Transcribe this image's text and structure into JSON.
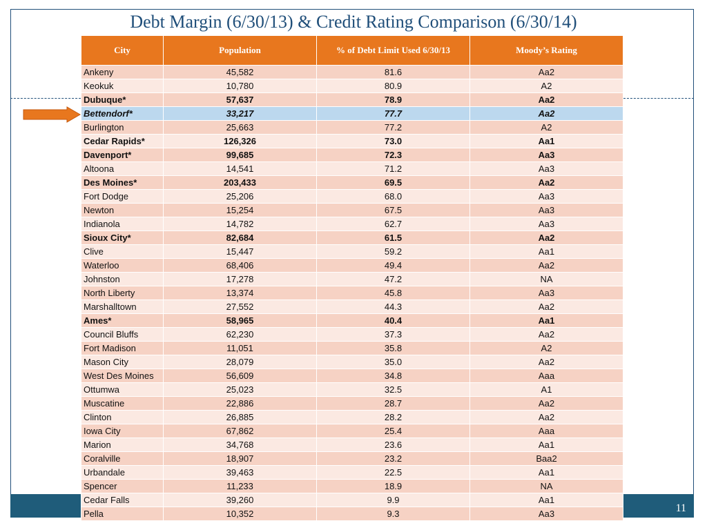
{
  "slide": {
    "title": "Debt Margin (6/30/13) & Credit Rating Comparison (6/30/14)",
    "page_number": "11"
  },
  "table": {
    "headers": [
      "City",
      "Population",
      "% of Debt Limit Used 6/30/13",
      "Moody’s Rating"
    ],
    "rows": [
      {
        "city": "Ankeny",
        "population": "45,582",
        "pct": "81.6",
        "rating": "Aa2",
        "style": "normal"
      },
      {
        "city": "Keokuk",
        "population": "10,780",
        "pct": "80.9",
        "rating": "A2",
        "style": "normal"
      },
      {
        "city": "Dubuque*",
        "population": "57,637",
        "pct": "78.9",
        "rating": "Aa2",
        "style": "bold"
      },
      {
        "city": "Bettendorf*",
        "population": "33,217",
        "pct": "77.7",
        "rating": "Aa2",
        "style": "highlight"
      },
      {
        "city": "Burlington",
        "population": "25,663",
        "pct": "77.2",
        "rating": "A2",
        "style": "normal"
      },
      {
        "city": "Cedar Rapids*",
        "population": "126,326",
        "pct": "73.0",
        "rating": "Aa1",
        "style": "bold"
      },
      {
        "city": "Davenport*",
        "population": "99,685",
        "pct": "72.3",
        "rating": "Aa3",
        "style": "bold"
      },
      {
        "city": "Altoona",
        "population": "14,541",
        "pct": "71.2",
        "rating": "Aa3",
        "style": "normal"
      },
      {
        "city": "Des Moines*",
        "population": "203,433",
        "pct": "69.5",
        "rating": "Aa2",
        "style": "bold"
      },
      {
        "city": "Fort Dodge",
        "population": "25,206",
        "pct": "68.0",
        "rating": "Aa3",
        "style": "normal"
      },
      {
        "city": "Newton",
        "population": "15,254",
        "pct": "67.5",
        "rating": "Aa3",
        "style": "normal"
      },
      {
        "city": "Indianola",
        "population": "14,782",
        "pct": "62.7",
        "rating": "Aa3",
        "style": "normal"
      },
      {
        "city": "Sioux City*",
        "population": "82,684",
        "pct": "61.5",
        "rating": "Aa2",
        "style": "bold"
      },
      {
        "city": "Clive",
        "population": "15,447",
        "pct": "59.2",
        "rating": "Aa1",
        "style": "normal"
      },
      {
        "city": "Waterloo",
        "population": "68,406",
        "pct": "49.4",
        "rating": "Aa2",
        "style": "normal"
      },
      {
        "city": "Johnston",
        "population": "17,278",
        "pct": "47.2",
        "rating": "NA",
        "style": "normal"
      },
      {
        "city": "North Liberty",
        "population": "13,374",
        "pct": "45.8",
        "rating": "Aa3",
        "style": "normal"
      },
      {
        "city": "Marshalltown",
        "population": "27,552",
        "pct": "44.3",
        "rating": "Aa2",
        "style": "normal"
      },
      {
        "city": "Ames*",
        "population": "58,965",
        "pct": "40.4",
        "rating": "Aa1",
        "style": "bold"
      },
      {
        "city": "Council Bluffs",
        "population": "62,230",
        "pct": "37.3",
        "rating": "Aa2",
        "style": "normal"
      },
      {
        "city": "Fort Madison",
        "population": "11,051",
        "pct": "35.8",
        "rating": "A2",
        "style": "normal"
      },
      {
        "city": "Mason City",
        "population": "28,079",
        "pct": "35.0",
        "rating": "Aa2",
        "style": "normal"
      },
      {
        "city": "West Des Moines",
        "population": "56,609",
        "pct": "34.8",
        "rating": "Aaa",
        "style": "normal"
      },
      {
        "city": "Ottumwa",
        "population": "25,023",
        "pct": "32.5",
        "rating": "A1",
        "style": "normal"
      },
      {
        "city": "Muscatine",
        "population": "22,886",
        "pct": "28.7",
        "rating": "Aa2",
        "style": "normal"
      },
      {
        "city": "Clinton",
        "population": "26,885",
        "pct": "28.2",
        "rating": "Aa2",
        "style": "normal"
      },
      {
        "city": "Iowa City",
        "population": "67,862",
        "pct": "25.4",
        "rating": "Aaa",
        "style": "normal"
      },
      {
        "city": "Marion",
        "population": "34,768",
        "pct": "23.6",
        "rating": "Aa1",
        "style": "normal"
      },
      {
        "city": "Coralville",
        "population": "18,907",
        "pct": "23.2",
        "rating": "Baa2",
        "style": "normal"
      },
      {
        "city": "Urbandale",
        "population": "39,463",
        "pct": "22.5",
        "rating": "Aa1",
        "style": "normal"
      },
      {
        "city": "Spencer",
        "population": "11,233",
        "pct": "18.9",
        "rating": "NA",
        "style": "normal"
      },
      {
        "city": "Cedar Falls",
        "population": "39,260",
        "pct": "9.9",
        "rating": "Aa1",
        "style": "normal"
      },
      {
        "city": "Pella",
        "population": "10,352",
        "pct": "9.3",
        "rating": "Aa3",
        "style": "normal"
      }
    ]
  },
  "colors": {
    "header_bg": "#e8771e",
    "row_odd": "#f6d2c4",
    "row_even": "#fbe9e2",
    "highlight_row": "#bcd8ee",
    "title": "#1f4e79",
    "footer": "#1f5c7a",
    "arrow": "#e8771e"
  },
  "icons": {
    "pointer": "right-arrow-icon"
  }
}
